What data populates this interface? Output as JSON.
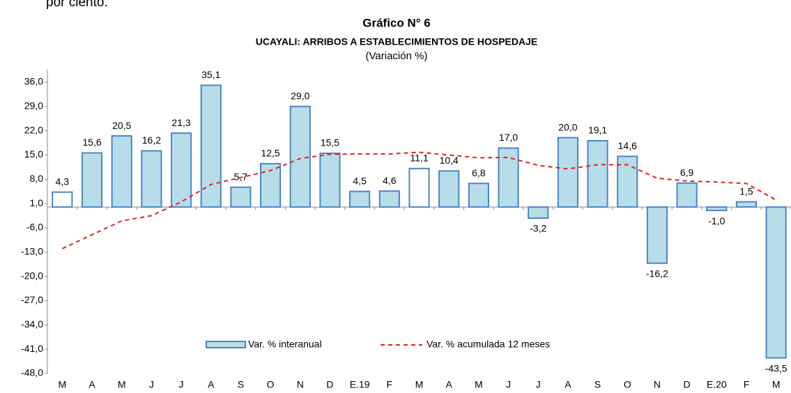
{
  "header_text": "por ciento.",
  "chart_data": {
    "type": "bar",
    "title": "Gráfico N° 6",
    "subtitle": "UCAYALI: ARRIBOS A ESTABLECIMIENTOS DE HOSPEDAJE",
    "y_label": "(Variación %)",
    "categories": [
      "M",
      "A",
      "M",
      "J",
      "J",
      "A",
      "S",
      "O",
      "N",
      "D",
      "E.19",
      "F",
      "M",
      "A",
      "M",
      "J",
      "J",
      "A",
      "S",
      "O",
      "N",
      "D",
      "E.20",
      "F",
      "M"
    ],
    "series": [
      {
        "name": "Var. % interanual",
        "type": "bar",
        "color": "#b7dde8",
        "stroke": "#4a86c8",
        "colors": [
          "#ffffff",
          "#b7dde8",
          "#b7dde8",
          "#b7dde8",
          "#b7dde8",
          "#b7dde8",
          "#b7dde8",
          "#b7dde8",
          "#b7dde8",
          "#b7dde8",
          "#b7dde8",
          "#b7dde8",
          "#ffffff",
          "#b7dde8",
          "#b7dde8",
          "#b7dde8",
          "#b7dde8",
          "#b7dde8",
          "#b7dde8",
          "#b7dde8",
          "#b7dde8",
          "#b7dde8",
          "#b7dde8",
          "#b7dde8",
          "#b7dde8"
        ],
        "values": [
          4.3,
          15.6,
          20.5,
          16.2,
          21.3,
          35.1,
          5.7,
          12.5,
          29.0,
          15.5,
          4.5,
          4.6,
          11.1,
          10.4,
          6.8,
          17.0,
          -3.2,
          20.0,
          19.1,
          14.6,
          -16.2,
          6.9,
          -1.0,
          1.5,
          -43.5
        ],
        "value_labels": [
          "4,3",
          "15,6",
          "20,5",
          "16,2",
          "21,3",
          "35,1",
          "5,7",
          "12,5",
          "29,0",
          "15,5",
          "4,5",
          "4,6",
          "11,1",
          "10,4",
          "6,8",
          "17,0",
          "-3,2",
          "20,0",
          "19,1",
          "14,6",
          "-16,2",
          "6,9",
          "-1,0",
          "1,5",
          "-43,5"
        ]
      },
      {
        "name": "Var. % acumulada 12 meses",
        "type": "line",
        "color": "#e02020",
        "values": [
          -12,
          -8,
          -4,
          -2.5,
          1.5,
          6.5,
          8.5,
          10.5,
          14,
          15.2,
          15.3,
          15.3,
          15.8,
          15,
          14.2,
          14.3,
          12,
          11,
          12.2,
          12.2,
          8.3,
          7.5,
          7.2,
          6.8,
          2
        ]
      }
    ],
    "ylim": [
      -48,
      39.6
    ],
    "yticks": [
      {
        "value": 36,
        "label": "36,0"
      },
      {
        "value": 29,
        "label": "29,0"
      },
      {
        "value": 22,
        "label": "22,0"
      },
      {
        "value": 15,
        "label": "15,0"
      },
      {
        "value": 8,
        "label": "8,0"
      },
      {
        "value": 1,
        "label": "1,0"
      },
      {
        "value": -6,
        "label": "-6,0"
      },
      {
        "value": -13,
        "label": "-13,0"
      },
      {
        "value": -20,
        "label": "-20,0"
      },
      {
        "value": -27,
        "label": "-27,0"
      },
      {
        "value": -34,
        "label": "-34,0"
      },
      {
        "value": -41,
        "label": "-41,0"
      },
      {
        "value": -48,
        "label": "-48,0"
      }
    ],
    "grid": false
  }
}
